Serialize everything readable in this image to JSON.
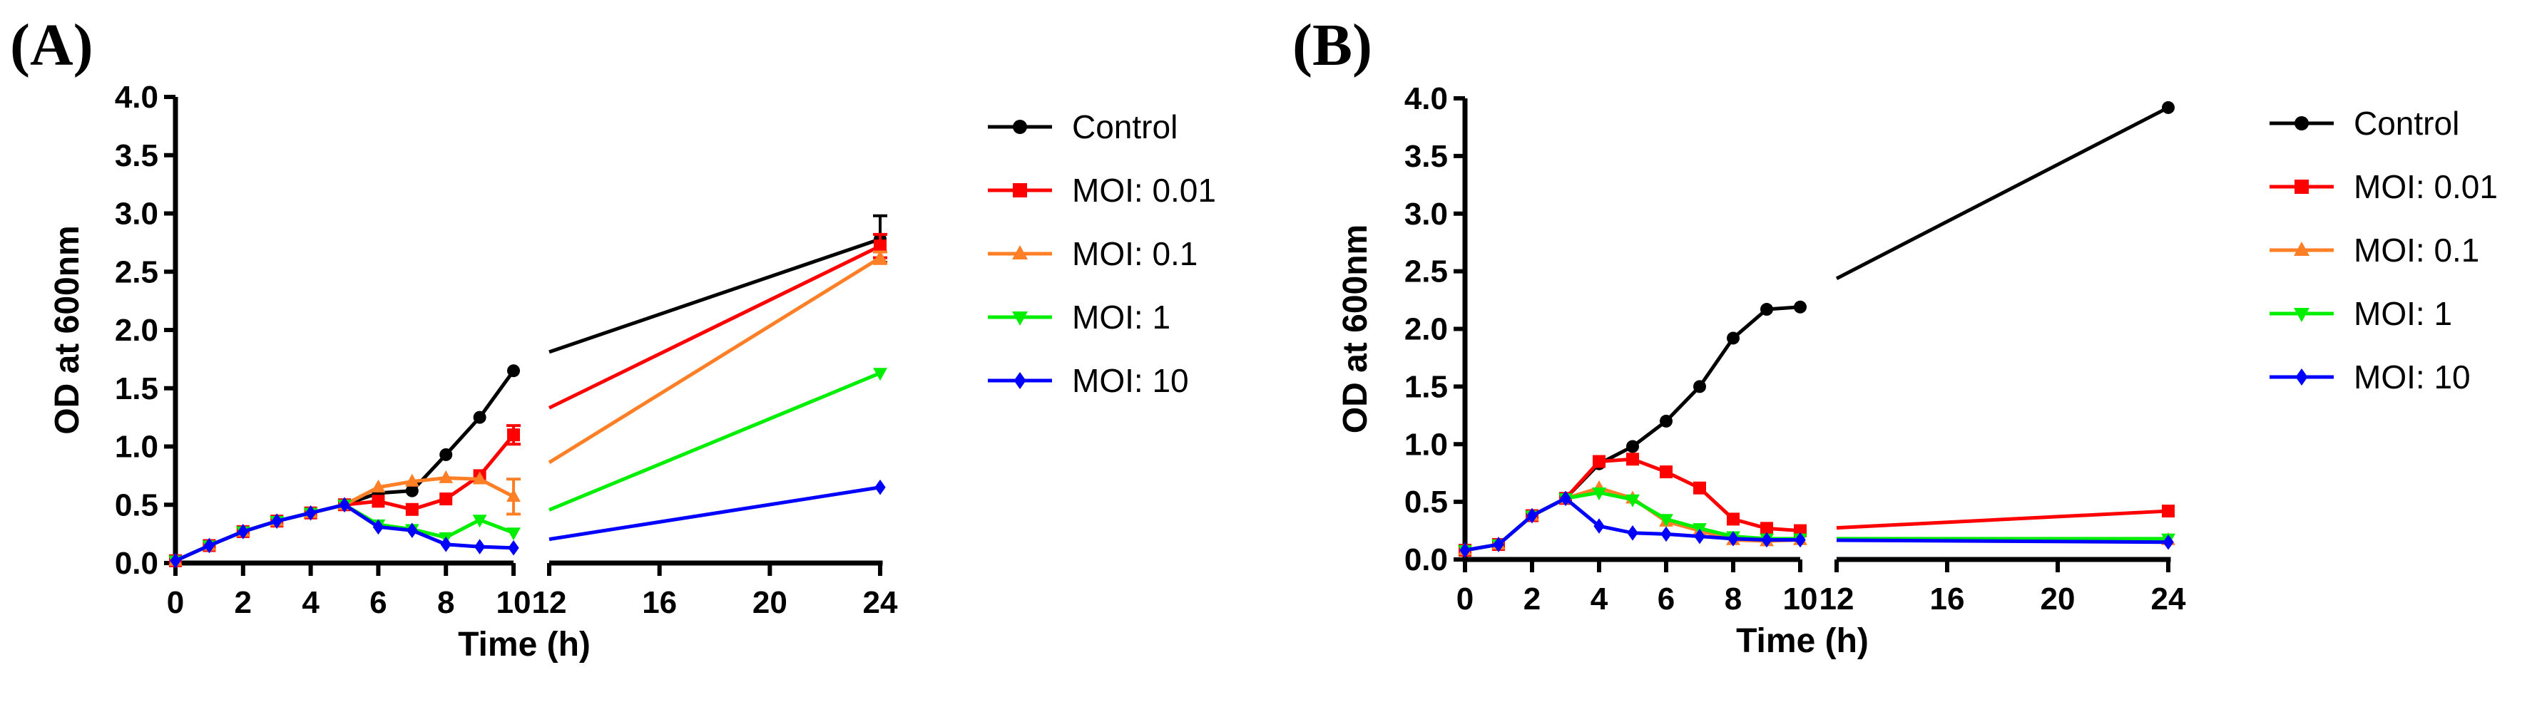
{
  "chart_data": [
    {
      "panel_label": "(A)",
      "type": "line",
      "xlabel": "Time (h)",
      "ylabel": "OD at 600nm",
      "ylim": [
        0,
        4
      ],
      "yticks": [
        "0.0",
        "0.5",
        "1.0",
        "1.5",
        "2.0",
        "2.5",
        "3.0",
        "3.5",
        "4.0"
      ],
      "x_segment_1": {
        "range": [
          0,
          10
        ],
        "ticks": [
          "0",
          "2",
          "4",
          "6",
          "8",
          "10"
        ]
      },
      "x_segment_2": {
        "range": [
          12,
          24
        ],
        "ticks": [
          "12",
          "16",
          "20",
          "24"
        ]
      },
      "legend_position": "right",
      "series": [
        {
          "name": "Control",
          "color": "#000000",
          "marker": "circle",
          "x": [
            0,
            1,
            2,
            3,
            4,
            5,
            6,
            7,
            8,
            9,
            10,
            24
          ],
          "y": [
            0.02,
            0.15,
            0.27,
            0.36,
            0.43,
            0.5,
            0.6,
            0.62,
            0.93,
            1.25,
            1.65,
            2.78
          ],
          "err": [
            0,
            0,
            0,
            0,
            0,
            0,
            0,
            0,
            0,
            0,
            0,
            0.2
          ]
        },
        {
          "name": "MOI: 0.01",
          "color": "#ff0000",
          "marker": "square",
          "x": [
            0,
            1,
            2,
            3,
            4,
            5,
            6,
            7,
            8,
            9,
            10,
            24
          ],
          "y": [
            0.02,
            0.15,
            0.27,
            0.36,
            0.43,
            0.5,
            0.53,
            0.46,
            0.55,
            0.75,
            1.1,
            2.72
          ],
          "err": [
            0,
            0,
            0,
            0,
            0,
            0,
            0,
            0,
            0,
            0,
            0.08,
            0.1
          ]
        },
        {
          "name": "MOI: 0.1",
          "color": "#ff7f27",
          "marker": "triangle-up",
          "x": [
            0,
            1,
            2,
            3,
            4,
            5,
            6,
            7,
            8,
            9,
            10,
            24
          ],
          "y": [
            0.02,
            0.15,
            0.27,
            0.36,
            0.43,
            0.5,
            0.65,
            0.7,
            0.73,
            0.72,
            0.57,
            2.62
          ],
          "err": [
            0,
            0,
            0,
            0,
            0,
            0,
            0,
            0,
            0,
            0,
            0.15,
            0.05
          ]
        },
        {
          "name": "MOI: 1",
          "color": "#00ee00",
          "marker": "triangle-down",
          "x": [
            0,
            1,
            2,
            3,
            4,
            5,
            6,
            7,
            8,
            9,
            10,
            24
          ],
          "y": [
            0.02,
            0.15,
            0.27,
            0.36,
            0.43,
            0.5,
            0.33,
            0.29,
            0.22,
            0.37,
            0.26,
            1.63
          ],
          "err": [
            0,
            0,
            0,
            0,
            0,
            0,
            0,
            0,
            0,
            0,
            0,
            0
          ]
        },
        {
          "name": "MOI: 10",
          "color": "#0000ff",
          "marker": "diamond",
          "x": [
            0,
            1,
            2,
            3,
            4,
            5,
            6,
            7,
            8,
            9,
            10,
            24
          ],
          "y": [
            0.02,
            0.15,
            0.27,
            0.36,
            0.43,
            0.5,
            0.31,
            0.28,
            0.16,
            0.14,
            0.13,
            0.65
          ],
          "err": [
            0,
            0,
            0,
            0,
            0,
            0,
            0,
            0,
            0,
            0,
            0,
            0
          ]
        }
      ]
    },
    {
      "panel_label": "(B)",
      "type": "line",
      "xlabel": "Time (h)",
      "ylabel": "OD at 600nm",
      "ylim": [
        0,
        4
      ],
      "yticks": [
        "0.0",
        "0.5",
        "1.0",
        "1.5",
        "2.0",
        "2.5",
        "3.0",
        "3.5",
        "4.0"
      ],
      "x_segment_1": {
        "range": [
          0,
          10
        ],
        "ticks": [
          "0",
          "2",
          "4",
          "6",
          "8",
          "10"
        ]
      },
      "x_segment_2": {
        "range": [
          12,
          24
        ],
        "ticks": [
          "12",
          "16",
          "20",
          "24"
        ]
      },
      "legend_position": "right",
      "series": [
        {
          "name": "Control",
          "color": "#000000",
          "marker": "circle",
          "x": [
            0,
            1,
            2,
            3,
            4,
            5,
            6,
            7,
            8,
            9,
            10,
            24
          ],
          "y": [
            0.08,
            0.13,
            0.38,
            0.53,
            0.83,
            0.98,
            1.2,
            1.5,
            1.92,
            2.17,
            2.19,
            3.92
          ],
          "err": [
            0,
            0,
            0,
            0,
            0,
            0,
            0,
            0,
            0,
            0,
            0,
            0
          ]
        },
        {
          "name": "MOI: 0.01",
          "color": "#ff0000",
          "marker": "square",
          "x": [
            0,
            1,
            2,
            3,
            4,
            5,
            6,
            7,
            8,
            9,
            10,
            24
          ],
          "y": [
            0.08,
            0.13,
            0.38,
            0.53,
            0.85,
            0.87,
            0.76,
            0.62,
            0.35,
            0.27,
            0.25,
            0.42
          ],
          "err": [
            0,
            0,
            0,
            0,
            0,
            0,
            0,
            0,
            0,
            0,
            0,
            0
          ]
        },
        {
          "name": "MOI: 0.1",
          "color": "#ff7f27",
          "marker": "triangle-up",
          "x": [
            0,
            1,
            2,
            3,
            4,
            5,
            6,
            7,
            8,
            9,
            10,
            24
          ],
          "y": [
            0.08,
            0.13,
            0.38,
            0.53,
            0.62,
            0.53,
            0.33,
            0.25,
            0.17,
            0.16,
            0.17,
            0.17
          ],
          "err": [
            0,
            0,
            0,
            0,
            0,
            0,
            0,
            0,
            0,
            0,
            0,
            0
          ]
        },
        {
          "name": "MOI: 1",
          "color": "#00ee00",
          "marker": "triangle-down",
          "x": [
            0,
            1,
            2,
            3,
            4,
            5,
            6,
            7,
            8,
            9,
            10,
            24
          ],
          "y": [
            0.08,
            0.13,
            0.38,
            0.53,
            0.58,
            0.52,
            0.35,
            0.27,
            0.2,
            0.18,
            0.18,
            0.18
          ],
          "err": [
            0,
            0,
            0,
            0,
            0,
            0,
            0,
            0,
            0,
            0,
            0,
            0
          ]
        },
        {
          "name": "MOI: 10",
          "color": "#0000ff",
          "marker": "diamond",
          "x": [
            0,
            1,
            2,
            3,
            4,
            5,
            6,
            7,
            8,
            9,
            10,
            24
          ],
          "y": [
            0.08,
            0.13,
            0.38,
            0.53,
            0.29,
            0.23,
            0.22,
            0.2,
            0.18,
            0.17,
            0.17,
            0.15
          ],
          "err": [
            0,
            0,
            0,
            0,
            0,
            0,
            0,
            0,
            0,
            0,
            0,
            0
          ]
        }
      ]
    }
  ]
}
